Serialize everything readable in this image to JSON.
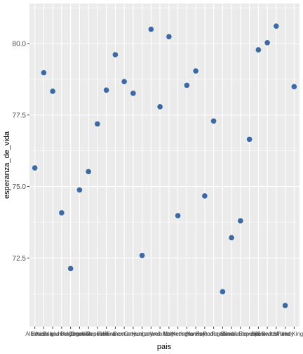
{
  "chart_data": {
    "type": "scatter",
    "xlabel": "pais",
    "ylabel": "esperanza_de_vida",
    "ylim": [
      70.1,
      81.4
    ],
    "yticks": [
      72.5,
      75.0,
      77.5,
      80.0
    ],
    "ytick_labels": [
      "72.5",
      "75.0",
      "77.5",
      "80.0"
    ],
    "grid": true,
    "panel_background": "#ebebeb",
    "grid_color": "#ffffff",
    "point_color": "#3b6aa6",
    "x_tick_labels": [
      "Albania",
      "Austria",
      "Belgium",
      "Bosnia and Herzegovina",
      "Bulgaria",
      "Croatia",
      "Czech Republic",
      "Denmark",
      "Finland",
      "France",
      "Germany",
      "Greece",
      "Hungary",
      "Iceland",
      "Ireland",
      "Italy",
      "Montenegro",
      "Netherlands",
      "Norway",
      "Poland",
      "Portugal",
      "Romania",
      "Serbia",
      "Slovak Republic",
      "Slovenia",
      "Spain",
      "Sweden",
      "Switzerland",
      "Turkey",
      "United Kingdom"
    ],
    "x": [
      "Albania",
      "Austria",
      "Belgium",
      "Bosnia and Herzegovina",
      "Bulgaria",
      "Croatia",
      "Czech Republic",
      "Denmark",
      "Finland",
      "France",
      "Germany",
      "Greece",
      "Hungary",
      "Iceland",
      "Ireland",
      "Italy",
      "Montenegro",
      "Netherlands",
      "Norway",
      "Poland",
      "Portugal",
      "Romania",
      "Serbia",
      "Slovak Republic",
      "Slovenia",
      "Spain",
      "Sweden",
      "Switzerland",
      "Turkey",
      "United Kingdom"
    ],
    "y": [
      75.65,
      78.98,
      78.33,
      74.08,
      72.13,
      74.88,
      75.52,
      77.19,
      78.37,
      79.61,
      78.67,
      78.26,
      72.59,
      80.5,
      77.79,
      80.24,
      73.98,
      78.54,
      79.04,
      74.67,
      77.29,
      71.32,
      73.21,
      73.8,
      76.65,
      79.78,
      80.03,
      80.61,
      70.84,
      78.49
    ]
  }
}
